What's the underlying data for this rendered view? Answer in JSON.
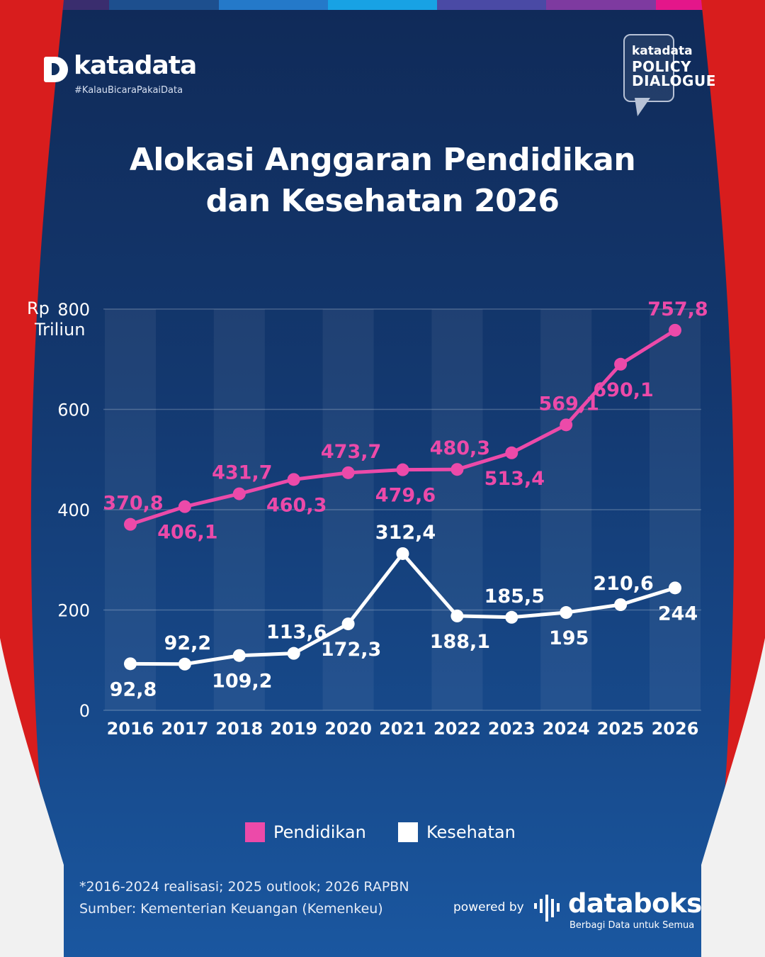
{
  "colors": {
    "background": "#13386f",
    "pendidikan": "#ec4aa9",
    "kesehatan": "#ffffff",
    "curtain_red": "#d81d1d",
    "topbar": [
      "#3a2d6e",
      "#1d4f8e",
      "#2479c9",
      "#18a2e4",
      "#4a4aa5",
      "#7e3aa0",
      "#e4168a"
    ]
  },
  "brand": {
    "name": "katadata",
    "tagline": "#KalauBicaraPakaiData",
    "policy_brand": "katadata",
    "policy_line1": "POLICY",
    "policy_line2": "DIALOGUE"
  },
  "title": {
    "line1": "Alokasi Anggaran Pendidikan",
    "line2": "dan Kesehatan 2026"
  },
  "chart_data": {
    "type": "line",
    "title": "Alokasi Anggaran Pendidikan dan Kesehatan 2026",
    "ylabel": "Rp Triliun",
    "xlabel": "",
    "ylim": [
      0,
      800
    ],
    "yticks": [
      0,
      200,
      400,
      600,
      800
    ],
    "grid": true,
    "legend_position": "bottom",
    "categories": [
      "2016",
      "2017",
      "2018",
      "2019",
      "2020",
      "2021",
      "2022",
      "2023",
      "2024",
      "2025",
      "2026"
    ],
    "series": [
      {
        "name": "Pendidikan",
        "values": [
          370.8,
          406.1,
          431.7,
          460.3,
          473.7,
          479.6,
          480.3,
          513.4,
          569.1,
          690.1,
          757.8
        ],
        "labels": [
          "370,8",
          "406,1",
          "431,7",
          "460,3",
          "473,7",
          "479,6",
          "480,3",
          "513,4",
          "569,1",
          "690,1",
          "757,8"
        ],
        "label_side": [
          "above",
          "below",
          "above",
          "below",
          "above",
          "below",
          "above",
          "below",
          "above",
          "below",
          "above"
        ]
      },
      {
        "name": "Kesehatan",
        "values": [
          92.8,
          92.2,
          109.2,
          113.6,
          172.3,
          312.4,
          188.1,
          185.5,
          195,
          210.6,
          244
        ],
        "labels": [
          "92,8",
          "92,2",
          "109,2",
          "113,6",
          "172,3",
          "312,4",
          "188,1",
          "185,5",
          "195",
          "210,6",
          "244"
        ],
        "label_side": [
          "below",
          "above",
          "below",
          "above",
          "below",
          "above",
          "below",
          "above",
          "below",
          "above",
          "below"
        ]
      }
    ]
  },
  "axis": {
    "unit_line1": "Rp",
    "unit_line2": "Triliun"
  },
  "legend": {
    "pendidikan": "Pendidikan",
    "kesehatan": "Kesehatan"
  },
  "notes": {
    "footnote": "*2016-2024 realisasi; 2025 outlook; 2026 RAPBN",
    "source": "Sumber: Kementerian Keuangan (Kemenkeu)"
  },
  "footer": {
    "powered_by": "powered by",
    "databoks": "databoks",
    "databoks_tagline": "Berbagi Data untuk Semua"
  }
}
